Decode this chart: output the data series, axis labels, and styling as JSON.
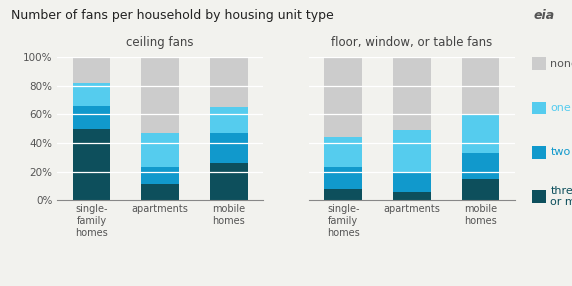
{
  "title": "Number of fans per household by housing unit type",
  "group_labels": [
    "ceiling fans",
    "floor, window, or table fans"
  ],
  "bar_labels": [
    "single-\nfamily\nhomes",
    "apartments",
    "mobile\nhomes"
  ],
  "legend_labels": [
    "none",
    "one",
    "two",
    "three\nor more"
  ],
  "colors_bottom_to_top": [
    "#0d4f5c",
    "#1199cc",
    "#55ccee",
    "#cccccc"
  ],
  "ceiling_fans": {
    "three_or_more": [
      50,
      11,
      26
    ],
    "two": [
      16,
      12,
      21
    ],
    "one": [
      16,
      24,
      18
    ],
    "none": [
      18,
      53,
      35
    ]
  },
  "floor_fans": {
    "three_or_more": [
      8,
      6,
      15
    ],
    "two": [
      15,
      13,
      18
    ],
    "one": [
      21,
      30,
      27
    ],
    "none": [
      56,
      51,
      40
    ]
  },
  "background_color": "#f2f2ee",
  "yticks": [
    0,
    20,
    40,
    60,
    80,
    100
  ],
  "ylim": [
    0,
    100
  ]
}
